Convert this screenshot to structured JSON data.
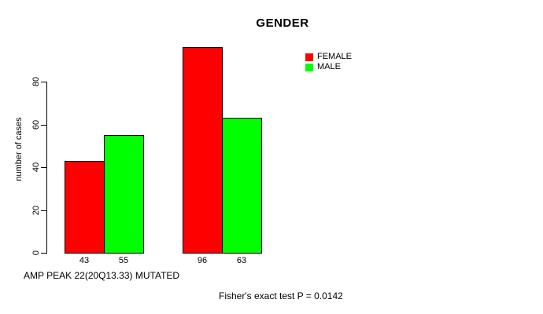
{
  "page": {
    "background_color": "#ffffff",
    "text_color": "#000000"
  },
  "chart_data": {
    "type": "bar",
    "title": "GENDER",
    "ylabel": "number of cases",
    "xlabel": "AMP PEAK 22(20Q13.33) MUTATED",
    "annotation": "Fisher's exact test P = 0.0142",
    "yticks": [
      0,
      20,
      40,
      60,
      80
    ],
    "ylim": [
      0,
      96
    ],
    "grid": false,
    "legend_position": "top-right",
    "categories": [
      "",
      ""
    ],
    "series": [
      {
        "name": "FEMALE",
        "color": "#ff0000",
        "values": [
          43,
          96
        ]
      },
      {
        "name": "MALE",
        "color": "#00ff00",
        "values": [
          55,
          63
        ]
      }
    ],
    "bar_value_labels": [
      [
        43,
        55
      ],
      [
        96,
        63
      ]
    ],
    "axis_color": "#000000"
  }
}
